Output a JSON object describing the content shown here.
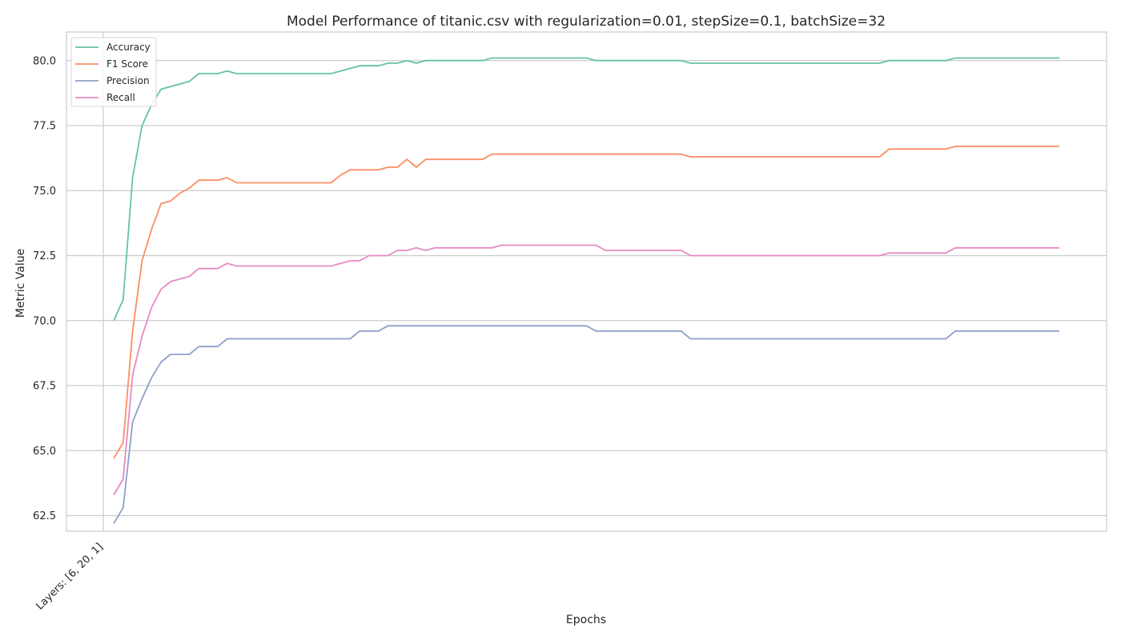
{
  "chart_data": {
    "type": "line",
    "title": "Model Performance of titanic.csv with regularization=0.01, stepSize=0.1, batchSize=32",
    "xlabel": "Epochs",
    "ylabel": "Metric Value",
    "xtick_labels": [
      "Layers: [6, 20, 1]"
    ],
    "ylim": [
      61.9,
      81.1
    ],
    "yticks": [
      "62.5",
      "65.0",
      "67.5",
      "70.0",
      "72.5",
      "75.0",
      "77.5",
      "80.0"
    ],
    "grid": true,
    "legend_position": "top-left",
    "series": [
      {
        "name": "Accuracy",
        "color": "#66c2a5",
        "values": [
          70.0,
          70.8,
          75.5,
          77.5,
          78.3,
          78.9,
          79.0,
          79.1,
          79.2,
          79.5,
          79.5,
          79.5,
          79.6,
          79.5,
          79.5,
          79.5,
          79.5,
          79.5,
          79.5,
          79.5,
          79.5,
          79.5,
          79.5,
          79.5,
          79.6,
          79.7,
          79.8,
          79.8,
          79.8,
          79.9,
          79.9,
          80.0,
          79.9,
          80.0,
          80.0,
          80.0,
          80.0,
          80.0,
          80.0,
          80.0,
          80.1,
          80.1,
          80.1,
          80.1,
          80.1,
          80.1,
          80.1,
          80.1,
          80.1,
          80.1,
          80.1,
          80.0,
          80.0,
          80.0,
          80.0,
          80.0,
          80.0,
          80.0,
          80.0,
          80.0,
          80.0,
          79.9,
          79.9,
          79.9,
          79.9,
          79.9,
          79.9,
          79.9,
          79.9,
          79.9,
          79.9,
          79.9,
          79.9,
          79.9,
          79.9,
          79.9,
          79.9,
          79.9,
          79.9,
          79.9,
          79.9,
          79.9,
          80.0,
          80.0,
          80.0,
          80.0,
          80.0,
          80.0,
          80.0,
          80.1,
          80.1,
          80.1,
          80.1,
          80.1,
          80.1,
          80.1,
          80.1,
          80.1,
          80.1,
          80.1,
          80.1
        ]
      },
      {
        "name": "F1 Score",
        "color": "#fc8d62",
        "values": [
          64.7,
          65.3,
          69.6,
          72.3,
          73.5,
          74.5,
          74.6,
          74.9,
          75.1,
          75.4,
          75.4,
          75.4,
          75.5,
          75.3,
          75.3,
          75.3,
          75.3,
          75.3,
          75.3,
          75.3,
          75.3,
          75.3,
          75.3,
          75.3,
          75.6,
          75.8,
          75.8,
          75.8,
          75.8,
          75.9,
          75.9,
          76.2,
          75.9,
          76.2,
          76.2,
          76.2,
          76.2,
          76.2,
          76.2,
          76.2,
          76.4,
          76.4,
          76.4,
          76.4,
          76.4,
          76.4,
          76.4,
          76.4,
          76.4,
          76.4,
          76.4,
          76.4,
          76.4,
          76.4,
          76.4,
          76.4,
          76.4,
          76.4,
          76.4,
          76.4,
          76.4,
          76.3,
          76.3,
          76.3,
          76.3,
          76.3,
          76.3,
          76.3,
          76.3,
          76.3,
          76.3,
          76.3,
          76.3,
          76.3,
          76.3,
          76.3,
          76.3,
          76.3,
          76.3,
          76.3,
          76.3,
          76.3,
          76.6,
          76.6,
          76.6,
          76.6,
          76.6,
          76.6,
          76.6,
          76.7,
          76.7,
          76.7,
          76.7,
          76.7,
          76.7,
          76.7,
          76.7,
          76.7,
          76.7,
          76.7,
          76.7
        ]
      },
      {
        "name": "Precision",
        "color": "#8da0cb",
        "values": [
          62.2,
          62.8,
          66.1,
          67.0,
          67.8,
          68.4,
          68.7,
          68.7,
          68.7,
          69.0,
          69.0,
          69.0,
          69.3,
          69.3,
          69.3,
          69.3,
          69.3,
          69.3,
          69.3,
          69.3,
          69.3,
          69.3,
          69.3,
          69.3,
          69.3,
          69.3,
          69.6,
          69.6,
          69.6,
          69.8,
          69.8,
          69.8,
          69.8,
          69.8,
          69.8,
          69.8,
          69.8,
          69.8,
          69.8,
          69.8,
          69.8,
          69.8,
          69.8,
          69.8,
          69.8,
          69.8,
          69.8,
          69.8,
          69.8,
          69.8,
          69.8,
          69.6,
          69.6,
          69.6,
          69.6,
          69.6,
          69.6,
          69.6,
          69.6,
          69.6,
          69.6,
          69.3,
          69.3,
          69.3,
          69.3,
          69.3,
          69.3,
          69.3,
          69.3,
          69.3,
          69.3,
          69.3,
          69.3,
          69.3,
          69.3,
          69.3,
          69.3,
          69.3,
          69.3,
          69.3,
          69.3,
          69.3,
          69.3,
          69.3,
          69.3,
          69.3,
          69.3,
          69.3,
          69.3,
          69.6,
          69.6,
          69.6,
          69.6,
          69.6,
          69.6,
          69.6,
          69.6,
          69.6,
          69.6,
          69.6,
          69.6
        ]
      },
      {
        "name": "Recall",
        "color": "#e78ac3",
        "values": [
          63.3,
          63.9,
          67.9,
          69.4,
          70.5,
          71.2,
          71.5,
          71.6,
          71.7,
          72.0,
          72.0,
          72.0,
          72.2,
          72.1,
          72.1,
          72.1,
          72.1,
          72.1,
          72.1,
          72.1,
          72.1,
          72.1,
          72.1,
          72.1,
          72.2,
          72.3,
          72.3,
          72.5,
          72.5,
          72.5,
          72.7,
          72.7,
          72.8,
          72.7,
          72.8,
          72.8,
          72.8,
          72.8,
          72.8,
          72.8,
          72.8,
          72.9,
          72.9,
          72.9,
          72.9,
          72.9,
          72.9,
          72.9,
          72.9,
          72.9,
          72.9,
          72.9,
          72.7,
          72.7,
          72.7,
          72.7,
          72.7,
          72.7,
          72.7,
          72.7,
          72.7,
          72.5,
          72.5,
          72.5,
          72.5,
          72.5,
          72.5,
          72.5,
          72.5,
          72.5,
          72.5,
          72.5,
          72.5,
          72.5,
          72.5,
          72.5,
          72.5,
          72.5,
          72.5,
          72.5,
          72.5,
          72.5,
          72.6,
          72.6,
          72.6,
          72.6,
          72.6,
          72.6,
          72.6,
          72.8,
          72.8,
          72.8,
          72.8,
          72.8,
          72.8,
          72.8,
          72.8,
          72.8,
          72.8,
          72.8,
          72.8
        ]
      }
    ]
  }
}
